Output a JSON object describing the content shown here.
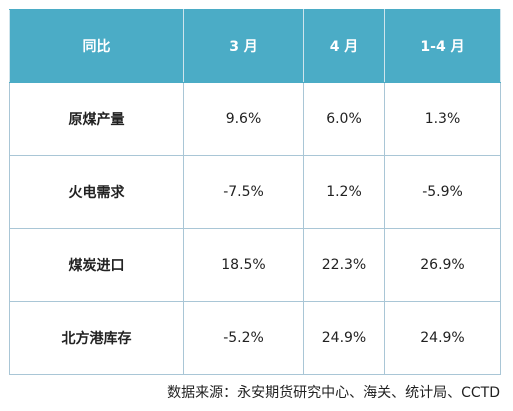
{
  "table": {
    "header": [
      "同比",
      "3 月",
      "4 月",
      "1-4 月"
    ],
    "rows": [
      [
        "原煤产量",
        "9.6%",
        "6.0%",
        "1.3%"
      ],
      [
        "火电需求",
        "-7.5%",
        "1.2%",
        "-5.9%"
      ],
      [
        "煤炭进口",
        "18.5%",
        "22.3%",
        "26.9%"
      ],
      [
        "北方港库存",
        "-5.2%",
        "24.9%",
        "24.9%"
      ]
    ]
  },
  "source": "数据来源：永安期货研究中心、海关、统计局、CCTD"
}
